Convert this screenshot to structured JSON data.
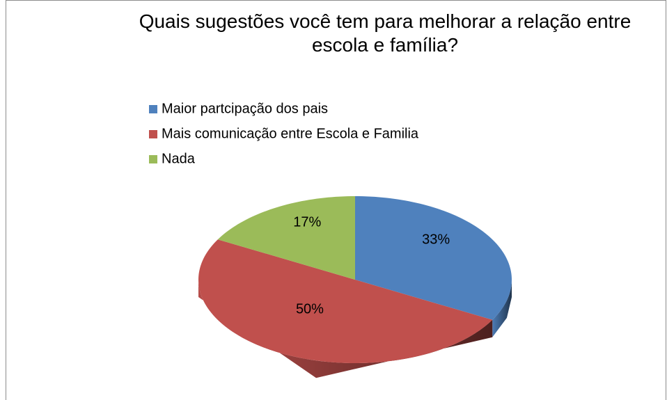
{
  "chart_data": {
    "type": "pie",
    "title": "Quais sugestões você tem para melhorar a relação entre escola e família?",
    "categories": [
      "Maior partcipação dos pais",
      "Mais comunicação entre Escola e Familia",
      "Nada"
    ],
    "values": [
      33,
      50,
      17
    ],
    "value_labels": [
      "33%",
      "50%",
      "17%"
    ],
    "colors": [
      "#4f81bd",
      "#c0504d",
      "#9bbb59"
    ],
    "legend": "top-left"
  }
}
